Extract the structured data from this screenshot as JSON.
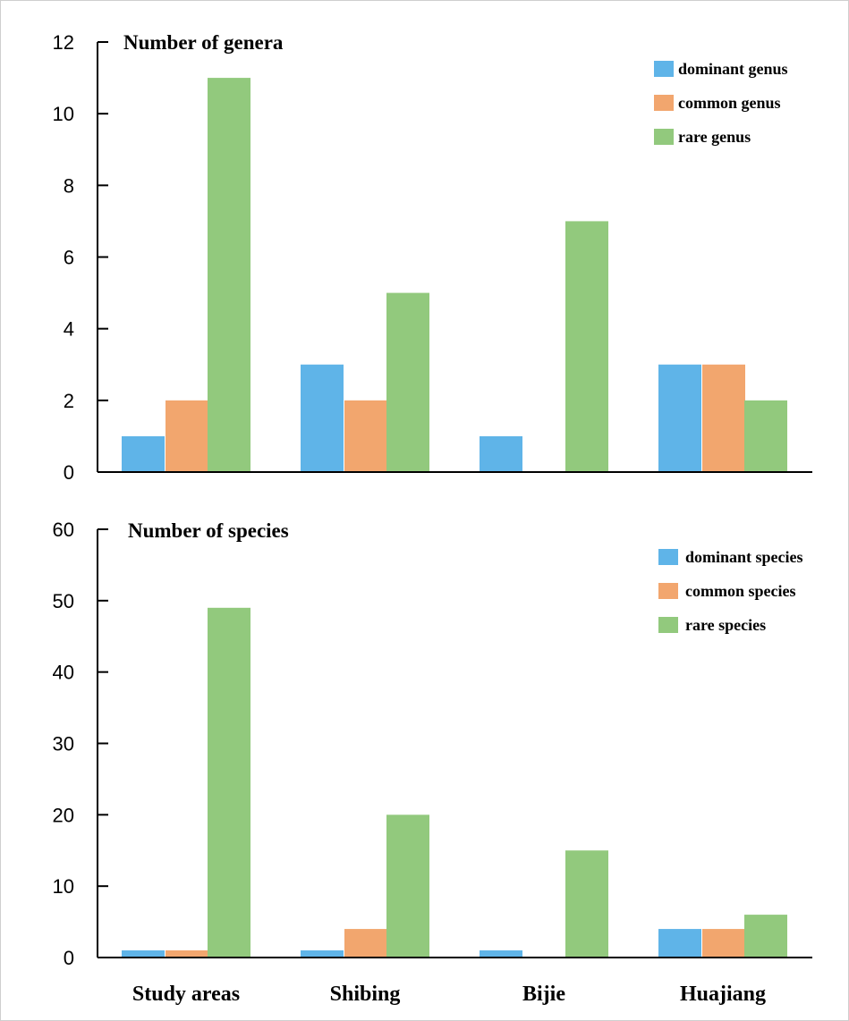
{
  "chart_data": [
    {
      "type": "bar",
      "title": "Number of genera",
      "categories": [
        "Study areas",
        "Shibing",
        "Bijie",
        "Huajiang"
      ],
      "series": [
        {
          "name": "dominant genus",
          "color": "#5fb4e8",
          "values": [
            1,
            3,
            1,
            3
          ]
        },
        {
          "name": "common genus",
          "color": "#f2a66e",
          "values": [
            2,
            2,
            0,
            3
          ]
        },
        {
          "name": "rare genus",
          "color": "#92c97d",
          "values": [
            11,
            5,
            7,
            2
          ]
        }
      ],
      "ylim": [
        0,
        12
      ],
      "yticks": [
        0,
        2,
        4,
        6,
        8,
        10,
        12
      ],
      "legend": "top-right",
      "show_category_labels": false
    },
    {
      "type": "bar",
      "title": "Number of species",
      "categories": [
        "Study areas",
        "Shibing",
        "Bijie",
        "Huajiang"
      ],
      "series": [
        {
          "name": "dominant species",
          "color": "#5fb4e8",
          "values": [
            1,
            1,
            1,
            4
          ]
        },
        {
          "name": "common species",
          "color": "#f2a66e",
          "values": [
            1,
            4,
            0,
            4
          ]
        },
        {
          "name": "rare species",
          "color": "#92c97d",
          "values": [
            49,
            20,
            15,
            6
          ]
        }
      ],
      "ylim": [
        0,
        60
      ],
      "yticks": [
        0,
        10,
        20,
        30,
        40,
        50,
        60
      ],
      "legend": "top-right",
      "show_category_labels": true
    }
  ]
}
